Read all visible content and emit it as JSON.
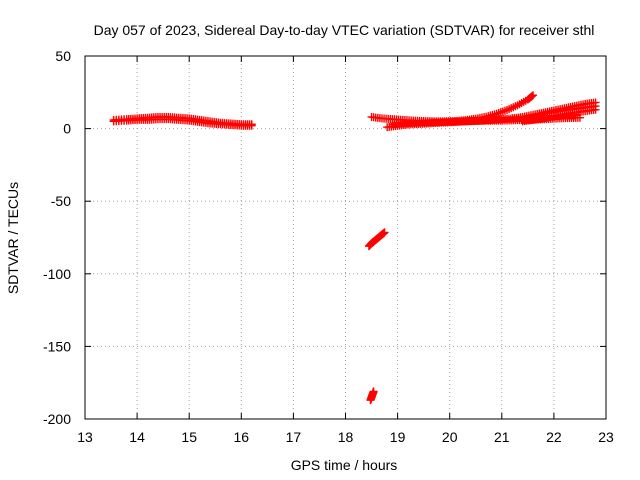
{
  "chart_data": {
    "type": "scatter",
    "title": "Day 057 of 2023, Sidereal Day-to-day VTEC variation (SDTVAR) for receiver sthl",
    "xlabel": "GPS time / hours",
    "ylabel": "SDTVAR / TECUs",
    "xlim": [
      13,
      23
    ],
    "ylim": [
      -200,
      50
    ],
    "xticks": [
      13,
      14,
      15,
      16,
      17,
      18,
      19,
      20,
      21,
      22,
      23
    ],
    "yticks": [
      50,
      0,
      -50,
      -100,
      -150,
      -200
    ],
    "grid": true,
    "legend": "none",
    "marker": "plus",
    "color": "#ff0000",
    "series": [
      {
        "x": [
          13.55,
          13.8,
          14.0,
          14.2,
          14.4,
          14.6,
          14.8,
          15.0,
          15.2,
          15.4,
          15.6,
          15.8,
          16.0,
          16.2
        ],
        "y": [
          6,
          6.5,
          7,
          7.5,
          8,
          8,
          7.5,
          7,
          6,
          5,
          4,
          3.5,
          3,
          3
        ]
      },
      {
        "x": [
          13.55,
          13.8,
          14.0,
          14.2,
          14.4,
          14.6,
          14.8,
          15.0,
          15.2,
          15.4,
          15.6,
          15.8,
          16.0,
          16.2
        ],
        "y": [
          5,
          5.5,
          6,
          6,
          6.5,
          6.5,
          6,
          5.5,
          4.5,
          3.5,
          3,
          2.5,
          2,
          2
        ]
      },
      {
        "x": [
          18.45,
          18.5,
          18.55,
          18.6,
          18.65,
          18.7,
          18.75
        ],
        "y": [
          -81,
          -79,
          -77.5,
          -76,
          -74.5,
          -73,
          -71.5
        ]
      },
      {
        "x": [
          18.48,
          18.5,
          18.52,
          18.54
        ],
        "y": [
          -187,
          -185,
          -183,
          -181
        ]
      },
      {
        "x": [
          18.5,
          18.7,
          18.9,
          19.1,
          19.3,
          19.5,
          19.7,
          19.9,
          20.1,
          20.3,
          20.5,
          20.7,
          20.9,
          21.1,
          21.3,
          21.5,
          21.6
        ],
        "y": [
          8,
          7,
          6.5,
          6,
          5.5,
          5.2,
          5,
          5,
          5.2,
          5.8,
          6.8,
          8.2,
          10.2,
          12.8,
          16,
          20,
          23
        ]
      },
      {
        "x": [
          18.8,
          19.0,
          19.2,
          19.4,
          19.6,
          19.8,
          20.0,
          20.2,
          20.4,
          20.6,
          20.8,
          21.0,
          21.2,
          21.4,
          21.6,
          21.8,
          22.0,
          22.2,
          22.4
        ],
        "y": [
          1,
          2,
          2.8,
          3.2,
          3.6,
          4,
          4.4,
          4.8,
          5.2,
          5.6,
          6,
          6.5,
          7,
          7.3,
          7.6,
          8,
          8.5,
          9,
          9
        ]
      },
      {
        "x": [
          18.9,
          19.1,
          19.3,
          19.5,
          19.7,
          19.9,
          20.1,
          20.3,
          20.5,
          20.7,
          20.9,
          21.1,
          21.3,
          21.5,
          21.7,
          21.9,
          22.1,
          22.3,
          22.5
        ],
        "y": [
          3,
          3.5,
          4,
          4.2,
          4.4,
          4.6,
          4.8,
          5,
          5.2,
          5.4,
          5.5,
          5.6,
          5.8,
          6,
          6.3,
          6.6,
          7,
          7.3,
          7.5
        ]
      },
      {
        "x": [
          21.2,
          21.4,
          21.6,
          21.8,
          22.0,
          22.2,
          22.4,
          22.6,
          22.8
        ],
        "y": [
          7,
          8,
          9.5,
          11,
          12.5,
          14,
          15.5,
          17,
          18
        ]
      },
      {
        "x": [
          21.4,
          21.6,
          21.8,
          22.0,
          22.2,
          22.4,
          22.6,
          22.8
        ],
        "y": [
          5,
          6,
          7,
          8.5,
          10,
          11,
          12,
          13
        ]
      },
      {
        "x": [
          21.6,
          21.8,
          22.0,
          22.2,
          22.4,
          22.6,
          22.8
        ],
        "y": [
          8,
          10,
          11.5,
          12.5,
          13.5,
          14.5,
          15.5
        ]
      }
    ]
  }
}
